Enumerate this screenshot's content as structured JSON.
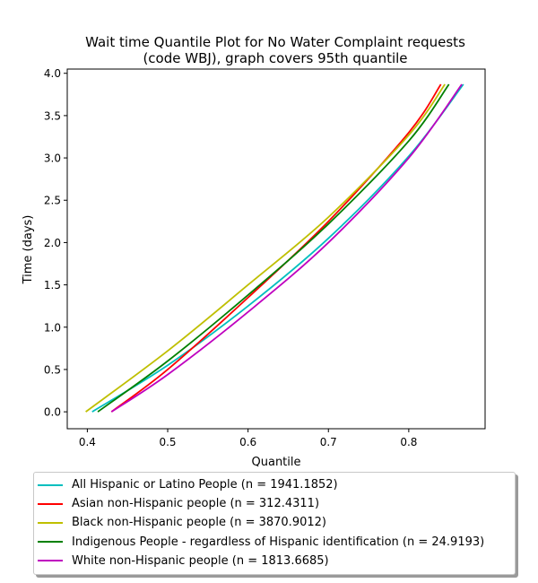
{
  "chart_data": {
    "type": "line",
    "title_lines": [
      "Wait time Quantile Plot for No Water Complaint  requests",
      "(code WBJ), graph covers 95th quantile"
    ],
    "xlabel": "Quantile",
    "ylabel": "Time (days)",
    "xlim": [
      0.375,
      0.895
    ],
    "ylim": [
      -0.2,
      4.05
    ],
    "xticks": [
      0.4,
      0.5,
      0.6,
      0.7,
      0.8
    ],
    "xtick_labels": [
      "0.4",
      "0.5",
      "0.6",
      "0.7",
      "0.8"
    ],
    "yticks": [
      0.0,
      0.5,
      1.0,
      1.5,
      2.0,
      2.5,
      3.0,
      3.5,
      4.0
    ],
    "ytick_labels": [
      "0.0",
      "0.5",
      "1.0",
      "1.5",
      "2.0",
      "2.5",
      "3.0",
      "3.5",
      "4.0"
    ],
    "grid": false,
    "legend_position": "below",
    "series": [
      {
        "name": "All Hispanic or Latino People (n = 1941.1852)",
        "color": "#00bfbf",
        "points": [
          [
            0.406,
            0.0
          ],
          [
            0.5,
            0.55
          ],
          [
            0.6,
            1.25
          ],
          [
            0.7,
            2.05
          ],
          [
            0.8,
            3.02
          ],
          [
            0.868,
            3.87
          ]
        ]
      },
      {
        "name": "Asian non-Hispanic people (n = 312.4311)",
        "color": "#ff0000",
        "points": [
          [
            0.43,
            0.0
          ],
          [
            0.5,
            0.5
          ],
          [
            0.6,
            1.35
          ],
          [
            0.7,
            2.25
          ],
          [
            0.8,
            3.3
          ],
          [
            0.84,
            3.87
          ]
        ]
      },
      {
        "name": "Black non-Hispanic people (n = 3870.9012)",
        "color": "#bfbf00",
        "points": [
          [
            0.398,
            0.0
          ],
          [
            0.5,
            0.72
          ],
          [
            0.6,
            1.5
          ],
          [
            0.7,
            2.3
          ],
          [
            0.8,
            3.27
          ],
          [
            0.845,
            3.87
          ]
        ]
      },
      {
        "name": "Indigenous People - regardless of Hispanic identification (n = 24.9193)",
        "color": "#008000",
        "points": [
          [
            0.413,
            0.0
          ],
          [
            0.5,
            0.6
          ],
          [
            0.6,
            1.38
          ],
          [
            0.7,
            2.22
          ],
          [
            0.8,
            3.2
          ],
          [
            0.85,
            3.87
          ]
        ]
      },
      {
        "name": "White non-Hispanic people (n = 1813.6685)",
        "color": "#bf00bf",
        "points": [
          [
            0.43,
            0.0
          ],
          [
            0.5,
            0.44
          ],
          [
            0.6,
            1.18
          ],
          [
            0.7,
            2.0
          ],
          [
            0.8,
            3.0
          ],
          [
            0.866,
            3.87
          ]
        ]
      }
    ]
  }
}
